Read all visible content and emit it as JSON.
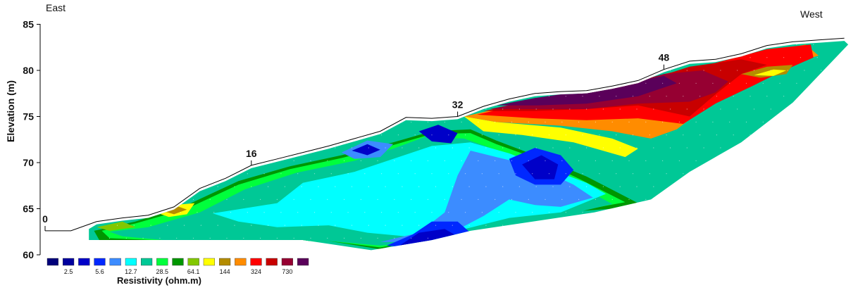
{
  "chart_data": {
    "type": "heatmap",
    "title": "",
    "xlabel": "",
    "ylabel": "Elevation (m)",
    "ylim": [
      60,
      85
    ],
    "yticks": [
      60,
      65,
      70,
      75,
      80,
      85
    ],
    "direction_labels": {
      "left": "East",
      "right": "West"
    },
    "stations": [
      {
        "label": "0",
        "position": 0,
        "elevation": 62.6
      },
      {
        "label": "16",
        "position": 16,
        "elevation": 69.7
      },
      {
        "label": "32",
        "position": 32,
        "elevation": 75.0
      },
      {
        "label": "48",
        "position": 48,
        "elevation": 80.1
      }
    ],
    "surface_profile": [
      [
        0,
        62.6
      ],
      [
        2,
        62.6
      ],
      [
        4,
        63.6
      ],
      [
        6,
        64.0
      ],
      [
        8,
        64.3
      ],
      [
        10,
        65.2
      ],
      [
        12,
        67.2
      ],
      [
        14,
        68.3
      ],
      [
        16,
        69.7
      ],
      [
        18,
        70.4
      ],
      [
        20,
        71.1
      ],
      [
        22,
        71.8
      ],
      [
        24,
        72.6
      ],
      [
        26,
        73.4
      ],
      [
        28,
        74.9
      ],
      [
        30,
        74.8
      ],
      [
        32,
        75.0
      ],
      [
        34,
        76.1
      ],
      [
        36,
        76.9
      ],
      [
        38,
        77.5
      ],
      [
        40,
        77.7
      ],
      [
        42,
        77.8
      ],
      [
        44,
        78.3
      ],
      [
        46,
        78.9
      ],
      [
        48,
        80.1
      ],
      [
        50,
        81.0
      ],
      [
        52,
        81.2
      ],
      [
        54,
        81.8
      ],
      [
        56,
        82.7
      ],
      [
        58,
        83.1
      ],
      [
        60,
        83.3
      ],
      [
        62,
        83.5
      ]
    ],
    "colorbar": {
      "title": "Resistivity (ohm.m)",
      "tick_labels": [
        "2.5",
        "5.6",
        "12.7",
        "28.5",
        "64.1",
        "144",
        "324",
        "730"
      ],
      "colors": [
        "#00007a",
        "#00009e",
        "#0000c8",
        "#0028ff",
        "#3c8cff",
        "#00ffff",
        "#00c896",
        "#00ff3c",
        "#009600",
        "#82c800",
        "#ffff00",
        "#b48c00",
        "#ff8c00",
        "#ff0000",
        "#c80000",
        "#960032",
        "#5a005a"
      ]
    },
    "zones": [
      {
        "color": "#009600",
        "polygon": [
          [
            3.8,
            62.6
          ],
          [
            7,
            63.6
          ],
          [
            11,
            65.4
          ],
          [
            15,
            68.0
          ],
          [
            19,
            69.6
          ],
          [
            23,
            70.8
          ],
          [
            27,
            72.2
          ],
          [
            30,
            73.4
          ],
          [
            33,
            73.6
          ],
          [
            35,
            72.4
          ],
          [
            38,
            70.8
          ],
          [
            42,
            68.5
          ],
          [
            46,
            65.6
          ],
          [
            44,
            65.0
          ],
          [
            40,
            64.6
          ],
          [
            34,
            63.6
          ],
          [
            30,
            62.2
          ],
          [
            26,
            60.6
          ],
          [
            22,
            61.5
          ],
          [
            10,
            61.5
          ],
          [
            4.2,
            61.6
          ]
        ]
      },
      {
        "color": "#00ff3c",
        "polygon": [
          [
            4.4,
            62.6
          ],
          [
            7,
            63.4
          ],
          [
            11,
            65.0
          ],
          [
            15,
            67.6
          ],
          [
            19,
            69.3
          ],
          [
            23,
            70.5
          ],
          [
            27,
            71.9
          ],
          [
            30,
            73.1
          ],
          [
            33,
            73.2
          ],
          [
            35,
            72.0
          ],
          [
            38,
            70.5
          ],
          [
            41.5,
            68.2
          ],
          [
            45,
            65.7
          ],
          [
            40,
            64.4
          ],
          [
            34,
            63.2
          ],
          [
            30,
            61.8
          ],
          [
            26,
            60.8
          ],
          [
            22,
            61.5
          ],
          [
            10,
            61.5
          ],
          [
            5,
            61.8
          ]
        ]
      },
      {
        "color": "#00c896",
        "polygon": [
          [
            5,
            62.5
          ],
          [
            8,
            63.0
          ],
          [
            12,
            64.6
          ],
          [
            15.5,
            67.1
          ],
          [
            19.5,
            68.9
          ],
          [
            24,
            70.2
          ],
          [
            27,
            71.5
          ],
          [
            29.5,
            72.8
          ],
          [
            32.5,
            72.6
          ],
          [
            34.5,
            71.6
          ],
          [
            37.5,
            70.0
          ],
          [
            41,
            67.8
          ],
          [
            44,
            65.5
          ],
          [
            40,
            64.2
          ],
          [
            34,
            63.0
          ],
          [
            30,
            61.5
          ],
          [
            26,
            61.0
          ],
          [
            22,
            61.5
          ],
          [
            10,
            61.5
          ],
          [
            6,
            62.0
          ]
        ]
      },
      {
        "color": "#00ffff",
        "polygon": [
          [
            13,
            64.5
          ],
          [
            18,
            65.6
          ],
          [
            20,
            67.8
          ],
          [
            24,
            69.0
          ],
          [
            27,
            70.4
          ],
          [
            30,
            71.8
          ],
          [
            33,
            72.2
          ],
          [
            36,
            71.0
          ],
          [
            39,
            69.4
          ],
          [
            42,
            67.8
          ],
          [
            43.5,
            66.6
          ],
          [
            40,
            64.6
          ],
          [
            36,
            64.0
          ],
          [
            32,
            62.6
          ],
          [
            28,
            62.0
          ],
          [
            25,
            62.4
          ],
          [
            22,
            63.2
          ],
          [
            18,
            63.0
          ],
          [
            15,
            63.6
          ]
        ]
      },
      {
        "color": "#3c8cff",
        "polygon": [
          [
            26,
            61.4
          ],
          [
            29,
            62.4
          ],
          [
            31,
            64.6
          ],
          [
            32,
            68.6
          ],
          [
            33,
            71.3
          ],
          [
            35,
            70.6
          ],
          [
            38,
            69.6
          ],
          [
            41,
            67.6
          ],
          [
            42.5,
            66.2
          ],
          [
            40,
            65.2
          ],
          [
            38,
            65.4
          ],
          [
            36,
            66.0
          ],
          [
            34,
            64.2
          ],
          [
            31,
            62.0
          ],
          [
            28,
            61.4
          ]
        ]
      },
      {
        "color": "#0028ff",
        "polygon": [
          [
            26.5,
            61.0
          ],
          [
            28.5,
            62.2
          ],
          [
            30,
            63.6
          ],
          [
            32,
            63.6
          ],
          [
            33,
            62.4
          ],
          [
            31,
            61.2
          ],
          [
            29,
            60.7
          ]
        ]
      },
      {
        "color": "#0028ff",
        "polygon": [
          [
            36,
            70.4
          ],
          [
            38,
            71.6
          ],
          [
            40,
            70.8
          ],
          [
            41,
            69.2
          ],
          [
            40,
            67.6
          ],
          [
            38,
            67.6
          ],
          [
            36.5,
            68.6
          ]
        ]
      },
      {
        "color": "#0000c8",
        "polygon": [
          [
            37,
            69.8
          ],
          [
            38.5,
            70.8
          ],
          [
            39.8,
            69.8
          ],
          [
            39.5,
            68.2
          ],
          [
            38,
            68.2
          ]
        ]
      },
      {
        "color": "#0000c8",
        "polygon": [
          [
            27.5,
            61.0
          ],
          [
            29,
            62.4
          ],
          [
            31,
            62.8
          ],
          [
            32,
            62.0
          ],
          [
            30,
            61.0
          ]
        ]
      },
      {
        "color": "#3c8cff",
        "polygon": [
          [
            23,
            71.1
          ],
          [
            25,
            72.4
          ],
          [
            27,
            72.0
          ],
          [
            26,
            70.6
          ],
          [
            24,
            70.4
          ]
        ]
      },
      {
        "color": "#0000c8",
        "polygon": [
          [
            23.8,
            71.3
          ],
          [
            25,
            72.0
          ],
          [
            26,
            71.4
          ],
          [
            25,
            70.8
          ]
        ]
      },
      {
        "color": "#0000c8",
        "polygon": [
          [
            29,
            73.4
          ],
          [
            30.5,
            74.1
          ],
          [
            32,
            73.2
          ],
          [
            31.5,
            72.1
          ],
          [
            30,
            72.3
          ]
        ]
      },
      {
        "color": "#82c800",
        "polygon": [
          [
            4,
            63.0
          ],
          [
            6,
            63.6
          ],
          [
            7,
            63.0
          ],
          [
            5,
            62.6
          ]
        ]
      },
      {
        "color": "#ffff00",
        "polygon": [
          [
            8.6,
            64.6
          ],
          [
            10,
            65.4
          ],
          [
            11.6,
            65.6
          ],
          [
            11,
            64.4
          ],
          [
            9.6,
            64.1
          ]
        ]
      },
      {
        "color": "#b48c00",
        "polygon": [
          [
            9,
            64.8
          ],
          [
            10.2,
            65.3
          ],
          [
            11,
            64.9
          ],
          [
            10,
            64.4
          ]
        ]
      },
      {
        "color": "#ffff00",
        "polygon": [
          [
            32.5,
            75.0
          ],
          [
            35,
            74.4
          ],
          [
            40,
            73.8
          ],
          [
            44,
            72.6
          ],
          [
            46,
            71.5
          ],
          [
            45,
            70.6
          ],
          [
            41,
            72.2
          ],
          [
            37,
            73.0
          ],
          [
            34,
            73.4
          ]
        ]
      },
      {
        "color": "#ff8c00",
        "polygon": [
          [
            32.5,
            75.0
          ],
          [
            35,
            75.8
          ],
          [
            40,
            76.8
          ],
          [
            44,
            77.7
          ],
          [
            48,
            79.5
          ],
          [
            52,
            80.6
          ],
          [
            56,
            82.0
          ],
          [
            59,
            82.8
          ],
          [
            60,
            81.6
          ],
          [
            57,
            80.4
          ],
          [
            55,
            78.6
          ],
          [
            52,
            76.8
          ],
          [
            49,
            73.6
          ],
          [
            47,
            72.6
          ],
          [
            44,
            73.4
          ],
          [
            40,
            74.0
          ],
          [
            35,
            74.4
          ]
        ]
      },
      {
        "color": "#ff0000",
        "polygon": [
          [
            33.5,
            75.2
          ],
          [
            36,
            76.0
          ],
          [
            40,
            77.0
          ],
          [
            44,
            77.9
          ],
          [
            48,
            79.6
          ],
          [
            52,
            80.8
          ],
          [
            56,
            82.3
          ],
          [
            59.4,
            82.8
          ],
          [
            59.6,
            81.4
          ],
          [
            57,
            79.8
          ],
          [
            55,
            78.4
          ],
          [
            52,
            76.4
          ],
          [
            49.5,
            74.2
          ],
          [
            46,
            74.8
          ],
          [
            42,
            74.6
          ],
          [
            38,
            74.8
          ]
        ]
      },
      {
        "color": "#c80000",
        "polygon": [
          [
            34,
            75.6
          ],
          [
            38,
            76.6
          ],
          [
            42,
            77.4
          ],
          [
            46,
            78.6
          ],
          [
            50,
            80.4
          ],
          [
            54,
            81.2
          ],
          [
            56,
            80.6
          ],
          [
            54,
            79.6
          ],
          [
            52,
            77.4
          ],
          [
            50,
            75.0
          ],
          [
            46,
            76.2
          ],
          [
            42,
            75.8
          ],
          [
            38,
            75.6
          ]
        ]
      },
      {
        "color": "#960032",
        "polygon": [
          [
            34.5,
            75.8
          ],
          [
            38,
            76.8
          ],
          [
            42,
            77.6
          ],
          [
            45,
            78.5
          ],
          [
            48,
            79.6
          ],
          [
            51,
            80.0
          ],
          [
            53,
            78.8
          ],
          [
            52,
            77.6
          ],
          [
            50,
            76.6
          ],
          [
            46,
            76.4
          ],
          [
            42,
            75.8
          ],
          [
            38,
            75.8
          ]
        ]
      },
      {
        "color": "#5a005a",
        "polygon": [
          [
            35,
            76.2
          ],
          [
            38,
            77.0
          ],
          [
            42,
            77.8
          ],
          [
            45,
            78.6
          ],
          [
            48,
            79.4
          ],
          [
            49,
            78.6
          ],
          [
            46,
            77.2
          ],
          [
            42,
            76.4
          ],
          [
            38,
            76.2
          ]
        ]
      },
      {
        "color": "#b48c00",
        "polygon": [
          [
            54,
            79.6
          ],
          [
            56,
            80.4
          ],
          [
            58,
            80.6
          ],
          [
            57.5,
            79.6
          ],
          [
            55.5,
            79.2
          ]
        ]
      },
      {
        "color": "#ffff00",
        "polygon": [
          [
            55,
            79.5
          ],
          [
            56.5,
            80.1
          ],
          [
            57.5,
            80.0
          ],
          [
            56.5,
            79.4
          ]
        ]
      }
    ]
  }
}
